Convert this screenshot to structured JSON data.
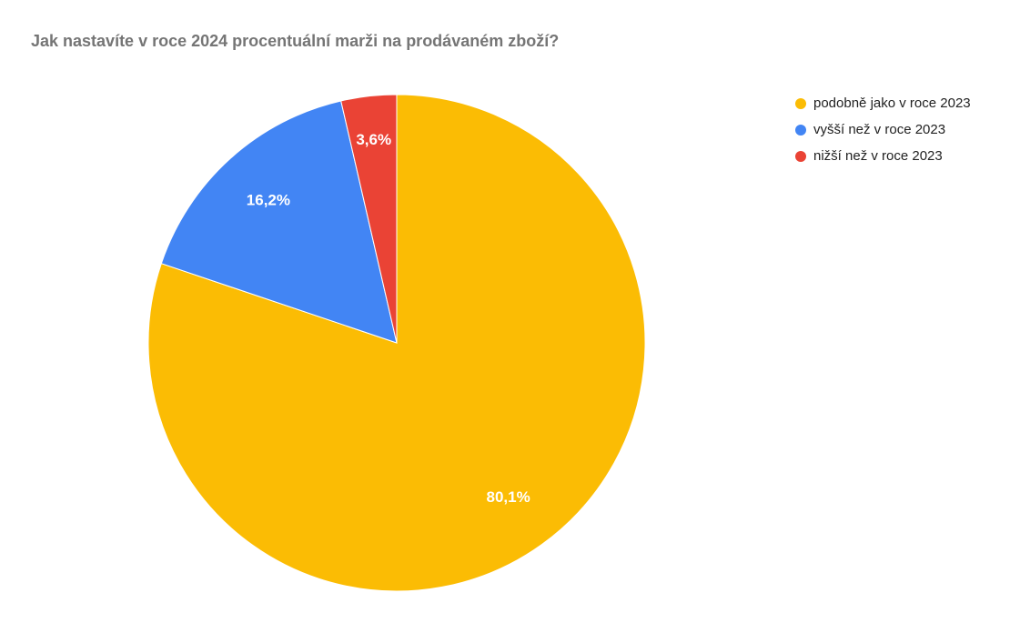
{
  "chart_data": {
    "type": "pie",
    "title": "Jak nastavíte v roce 2024 procentuální marži na prodávaném zboží?",
    "categories": [
      "podobně jako v roce 2023",
      "vyšší než v roce 2023",
      "nižší než v roce 2023"
    ],
    "values": [
      80.1,
      16.2,
      3.6
    ],
    "value_labels": [
      "80,1%",
      "16,2%",
      "3,6%"
    ],
    "colors": [
      "#fbbc04",
      "#4285f4",
      "#ea4335"
    ],
    "legend": "right"
  }
}
